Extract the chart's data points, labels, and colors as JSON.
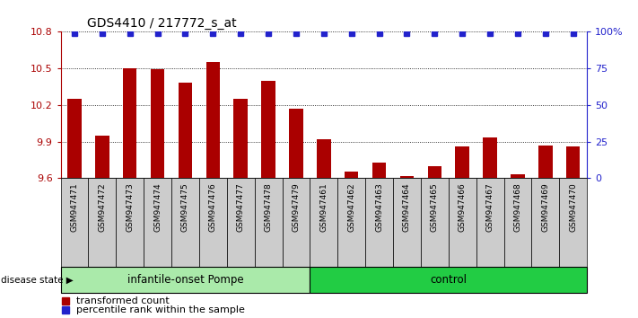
{
  "title": "GDS4410 / 217772_s_at",
  "samples": [
    "GSM947471",
    "GSM947472",
    "GSM947473",
    "GSM947474",
    "GSM947475",
    "GSM947476",
    "GSM947477",
    "GSM947478",
    "GSM947479",
    "GSM947461",
    "GSM947462",
    "GSM947463",
    "GSM947464",
    "GSM947465",
    "GSM947466",
    "GSM947467",
    "GSM947468",
    "GSM947469",
    "GSM947470"
  ],
  "bar_values": [
    10.25,
    9.95,
    10.5,
    10.49,
    10.38,
    10.55,
    10.25,
    10.4,
    10.17,
    9.92,
    9.65,
    9.73,
    9.62,
    9.7,
    9.86,
    9.93,
    9.63,
    9.87,
    9.86
  ],
  "percentile_values": [
    99,
    99,
    99,
    99,
    99,
    99,
    99,
    99,
    99,
    99,
    99,
    99,
    99,
    99,
    99,
    99,
    99,
    99,
    99
  ],
  "group1_label": "infantile-onset Pompe",
  "group2_label": "control",
  "group1_count": 9,
  "group2_count": 10,
  "ylim_left": [
    9.6,
    10.8
  ],
  "ylim_right": [
    0,
    100
  ],
  "yticks_left": [
    9.6,
    9.9,
    10.2,
    10.5,
    10.8
  ],
  "yticks_right": [
    0,
    25,
    50,
    75,
    100
  ],
  "bar_color": "#AA0000",
  "dot_color": "#2222CC",
  "group1_bg": "#AAEAAA",
  "group2_bg": "#22CC44",
  "label_bg": "#CCCCCC",
  "legend_bar_label": "transformed count",
  "legend_dot_label": "percentile rank within the sample",
  "disease_state_label": "disease state"
}
